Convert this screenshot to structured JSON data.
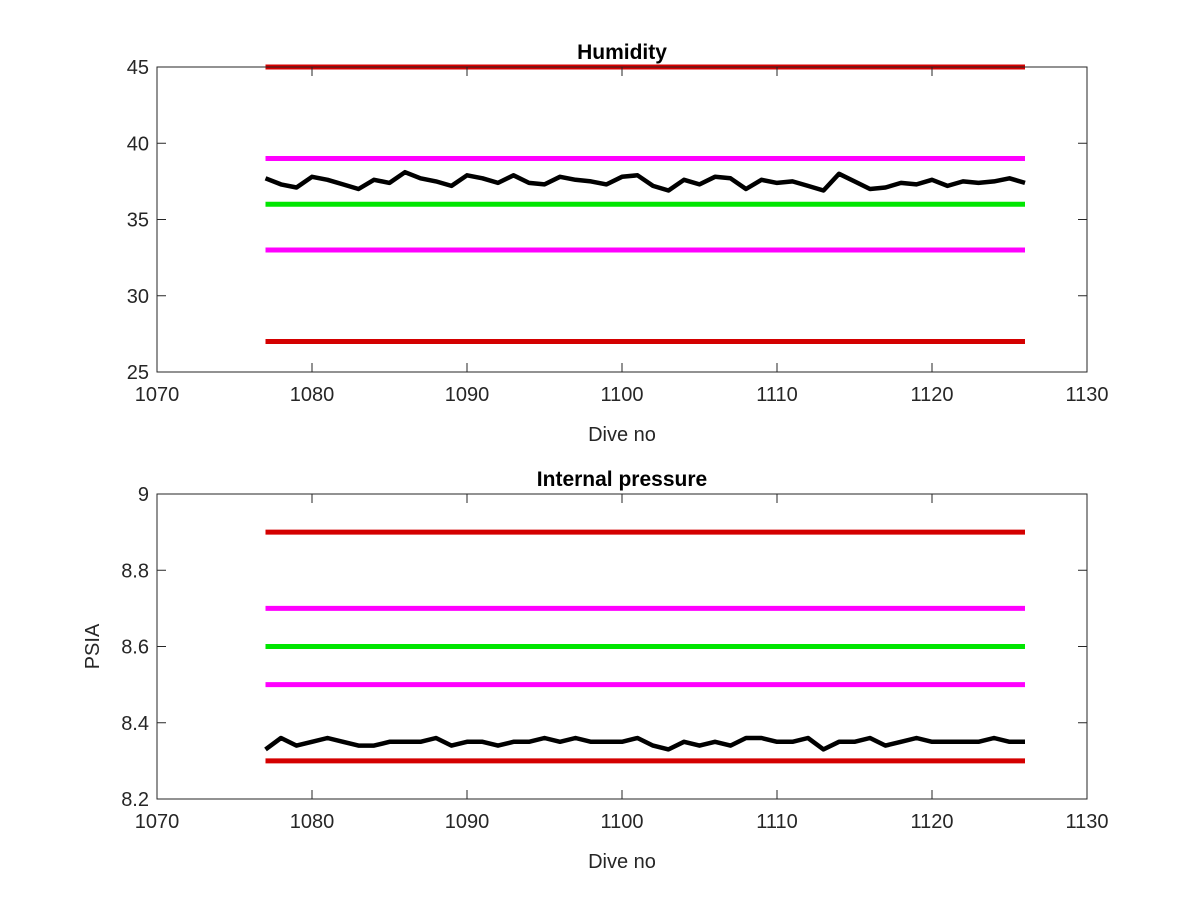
{
  "chart_data": [
    {
      "type": "line",
      "title": "Humidity",
      "xlabel": "Dive no",
      "ylabel": "",
      "xlim": [
        1070,
        1130
      ],
      "ylim": [
        25,
        45
      ],
      "xticks": [
        "1070",
        "1080",
        "1090",
        "1100",
        "1110",
        "1120",
        "1130"
      ],
      "yticks": [
        "25",
        "30",
        "35",
        "40",
        "45"
      ],
      "grid": false,
      "series": [
        {
          "color": "#d40000",
          "x": [
            1077,
            1126
          ],
          "y": [
            45,
            45
          ]
        },
        {
          "color": "#ff00ff",
          "x": [
            1077,
            1126
          ],
          "y": [
            39,
            39
          ]
        },
        {
          "color": "#00e600",
          "x": [
            1077,
            1126
          ],
          "y": [
            36,
            36
          ]
        },
        {
          "color": "#ff00ff",
          "x": [
            1077,
            1126
          ],
          "y": [
            33,
            33
          ]
        },
        {
          "color": "#d40000",
          "x": [
            1077,
            1126
          ],
          "y": [
            27,
            27
          ]
        },
        {
          "color": "#000000",
          "x": [
            1077,
            1078,
            1079,
            1080,
            1081,
            1082,
            1083,
            1084,
            1085,
            1086,
            1087,
            1088,
            1089,
            1090,
            1091,
            1092,
            1093,
            1094,
            1095,
            1096,
            1097,
            1098,
            1099,
            1100,
            1101,
            1102,
            1103,
            1104,
            1105,
            1106,
            1107,
            1108,
            1109,
            1110,
            1111,
            1112,
            1113,
            1114,
            1115,
            1116,
            1117,
            1118,
            1119,
            1120,
            1121,
            1122,
            1123,
            1124,
            1125,
            1126
          ],
          "y": [
            37.7,
            37.3,
            37.1,
            37.8,
            37.6,
            37.3,
            37.0,
            37.6,
            37.4,
            38.1,
            37.7,
            37.5,
            37.2,
            37.9,
            37.7,
            37.4,
            37.9,
            37.4,
            37.3,
            37.8,
            37.6,
            37.5,
            37.3,
            37.8,
            37.9,
            37.2,
            36.9,
            37.6,
            37.3,
            37.8,
            37.7,
            37.0,
            37.6,
            37.4,
            37.5,
            37.2,
            36.9,
            38.0,
            37.5,
            37.0,
            37.1,
            37.4,
            37.3,
            37.6,
            37.2,
            37.5,
            37.4,
            37.5,
            37.7,
            37.4
          ]
        }
      ]
    },
    {
      "type": "line",
      "title": "Internal pressure",
      "xlabel": "Dive no",
      "ylabel": "PSIA",
      "xlim": [
        1070,
        1130
      ],
      "ylim": [
        8.2,
        9.0
      ],
      "xticks": [
        "1070",
        "1080",
        "1090",
        "1100",
        "1110",
        "1120",
        "1130"
      ],
      "yticks": [
        "8.2",
        "8.4",
        "8.6",
        "8.8",
        "9"
      ],
      "grid": false,
      "series": [
        {
          "color": "#d40000",
          "x": [
            1077,
            1126
          ],
          "y": [
            8.9,
            8.9
          ]
        },
        {
          "color": "#ff00ff",
          "x": [
            1077,
            1126
          ],
          "y": [
            8.7,
            8.7
          ]
        },
        {
          "color": "#00e600",
          "x": [
            1077,
            1126
          ],
          "y": [
            8.6,
            8.6
          ]
        },
        {
          "color": "#ff00ff",
          "x": [
            1077,
            1126
          ],
          "y": [
            8.5,
            8.5
          ]
        },
        {
          "color": "#d40000",
          "x": [
            1077,
            1126
          ],
          "y": [
            8.3,
            8.3
          ]
        },
        {
          "color": "#000000",
          "x": [
            1077,
            1078,
            1079,
            1080,
            1081,
            1082,
            1083,
            1084,
            1085,
            1086,
            1087,
            1088,
            1089,
            1090,
            1091,
            1092,
            1093,
            1094,
            1095,
            1096,
            1097,
            1098,
            1099,
            1100,
            1101,
            1102,
            1103,
            1104,
            1105,
            1106,
            1107,
            1108,
            1109,
            1110,
            1111,
            1112,
            1113,
            1114,
            1115,
            1116,
            1117,
            1118,
            1119,
            1120,
            1121,
            1122,
            1123,
            1124,
            1125,
            1126
          ],
          "y": [
            8.33,
            8.36,
            8.34,
            8.35,
            8.36,
            8.35,
            8.34,
            8.34,
            8.35,
            8.35,
            8.35,
            8.36,
            8.34,
            8.35,
            8.35,
            8.34,
            8.35,
            8.35,
            8.36,
            8.35,
            8.36,
            8.35,
            8.35,
            8.35,
            8.36,
            8.34,
            8.33,
            8.35,
            8.34,
            8.35,
            8.34,
            8.36,
            8.36,
            8.35,
            8.35,
            8.36,
            8.33,
            8.35,
            8.35,
            8.36,
            8.34,
            8.35,
            8.36,
            8.35,
            8.35,
            8.35,
            8.35,
            8.36,
            8.35,
            8.35
          ]
        }
      ]
    }
  ]
}
